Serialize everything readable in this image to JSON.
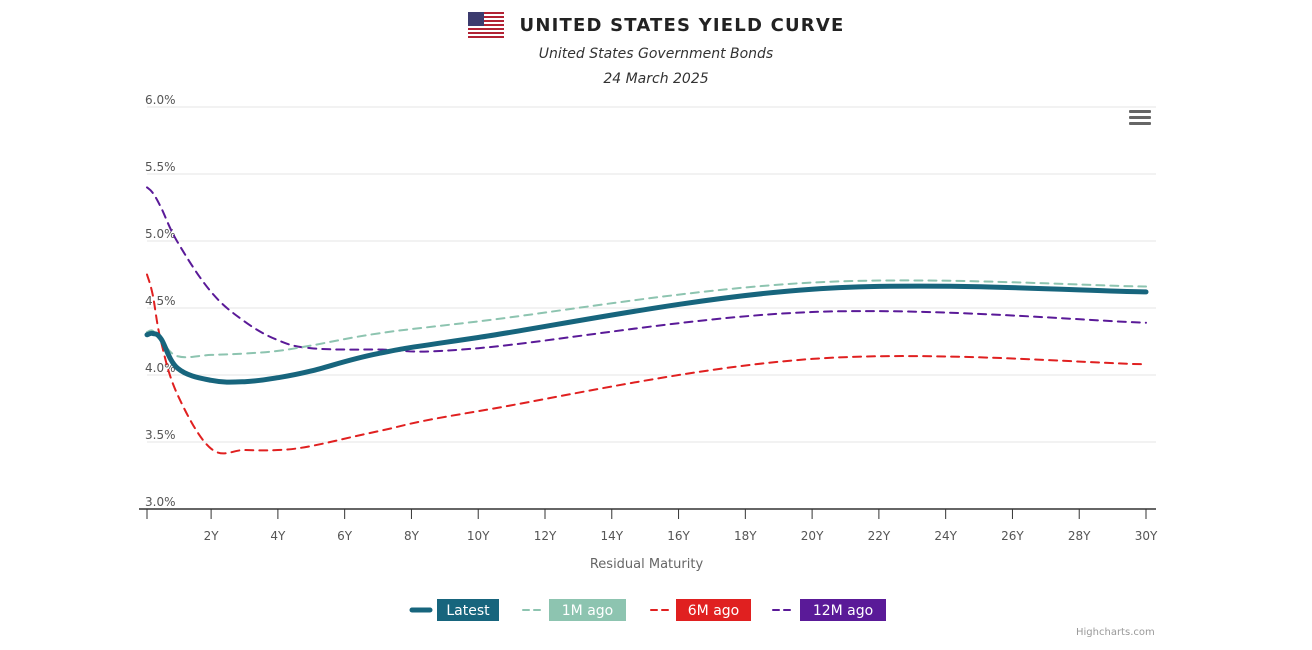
{
  "header": {
    "flag_icon": "us-flag-icon",
    "title": "UNITED STATES YIELD CURVE",
    "subtitle": "United States Government Bonds",
    "date": "24 March 2025"
  },
  "toolbar": {
    "menu_icon": "hamburger-menu-icon"
  },
  "credits": "Highcharts.com",
  "chart_data": {
    "type": "line",
    "title": "UNITED STATES YIELD CURVE",
    "subtitle": "United States Government Bonds",
    "xlabel": "Residual Maturity",
    "ylabel": "",
    "xlim": [
      0.08,
      30
    ],
    "ylim": [
      3.0,
      6.0
    ],
    "x_ticks": [
      "2Y",
      "4Y",
      "6Y",
      "8Y",
      "10Y",
      "12Y",
      "14Y",
      "16Y",
      "18Y",
      "20Y",
      "22Y",
      "24Y",
      "26Y",
      "28Y",
      "30Y"
    ],
    "y_ticks": [
      "3.0%",
      "3.5%",
      "4.0%",
      "4.5%",
      "5.0%",
      "5.5%",
      "6.0%"
    ],
    "grid": "horizontal",
    "legend_position": "bottom",
    "series": [
      {
        "name": "Latest",
        "color": "#17657d",
        "dash": "solid",
        "x": [
          0.08,
          0.25,
          0.5,
          1,
          2,
          3,
          4,
          5,
          7,
          10,
          20,
          30
        ],
        "y": [
          4.3,
          4.31,
          4.27,
          4.05,
          3.96,
          3.95,
          3.98,
          4.03,
          4.16,
          4.28,
          4.64,
          4.62
        ]
      },
      {
        "name": "1M ago",
        "color": "#8dc4b0",
        "dash": "dash",
        "x": [
          0.08,
          0.25,
          0.5,
          1,
          2,
          3,
          4,
          5,
          7,
          10,
          20,
          30
        ],
        "y": [
          4.32,
          4.33,
          4.26,
          4.14,
          4.15,
          4.16,
          4.18,
          4.22,
          4.31,
          4.4,
          4.69,
          4.66
        ]
      },
      {
        "name": "6M ago",
        "color": "#e02020",
        "dash": "dash",
        "x": [
          0.08,
          0.25,
          0.5,
          1,
          2,
          3,
          4,
          5,
          7,
          10,
          20,
          30
        ],
        "y": [
          4.75,
          4.6,
          4.25,
          3.85,
          3.45,
          3.44,
          3.44,
          3.47,
          3.58,
          3.73,
          4.12,
          4.08
        ]
      },
      {
        "name": "12M ago",
        "color": "#5a1a98",
        "dash": "dash",
        "x": [
          0.08,
          0.25,
          0.5,
          1,
          2,
          3,
          4,
          5,
          7,
          10,
          20,
          30
        ],
        "y": [
          5.4,
          5.36,
          5.25,
          4.99,
          4.62,
          4.4,
          4.26,
          4.2,
          4.19,
          4.2,
          4.47,
          4.39
        ]
      }
    ]
  }
}
